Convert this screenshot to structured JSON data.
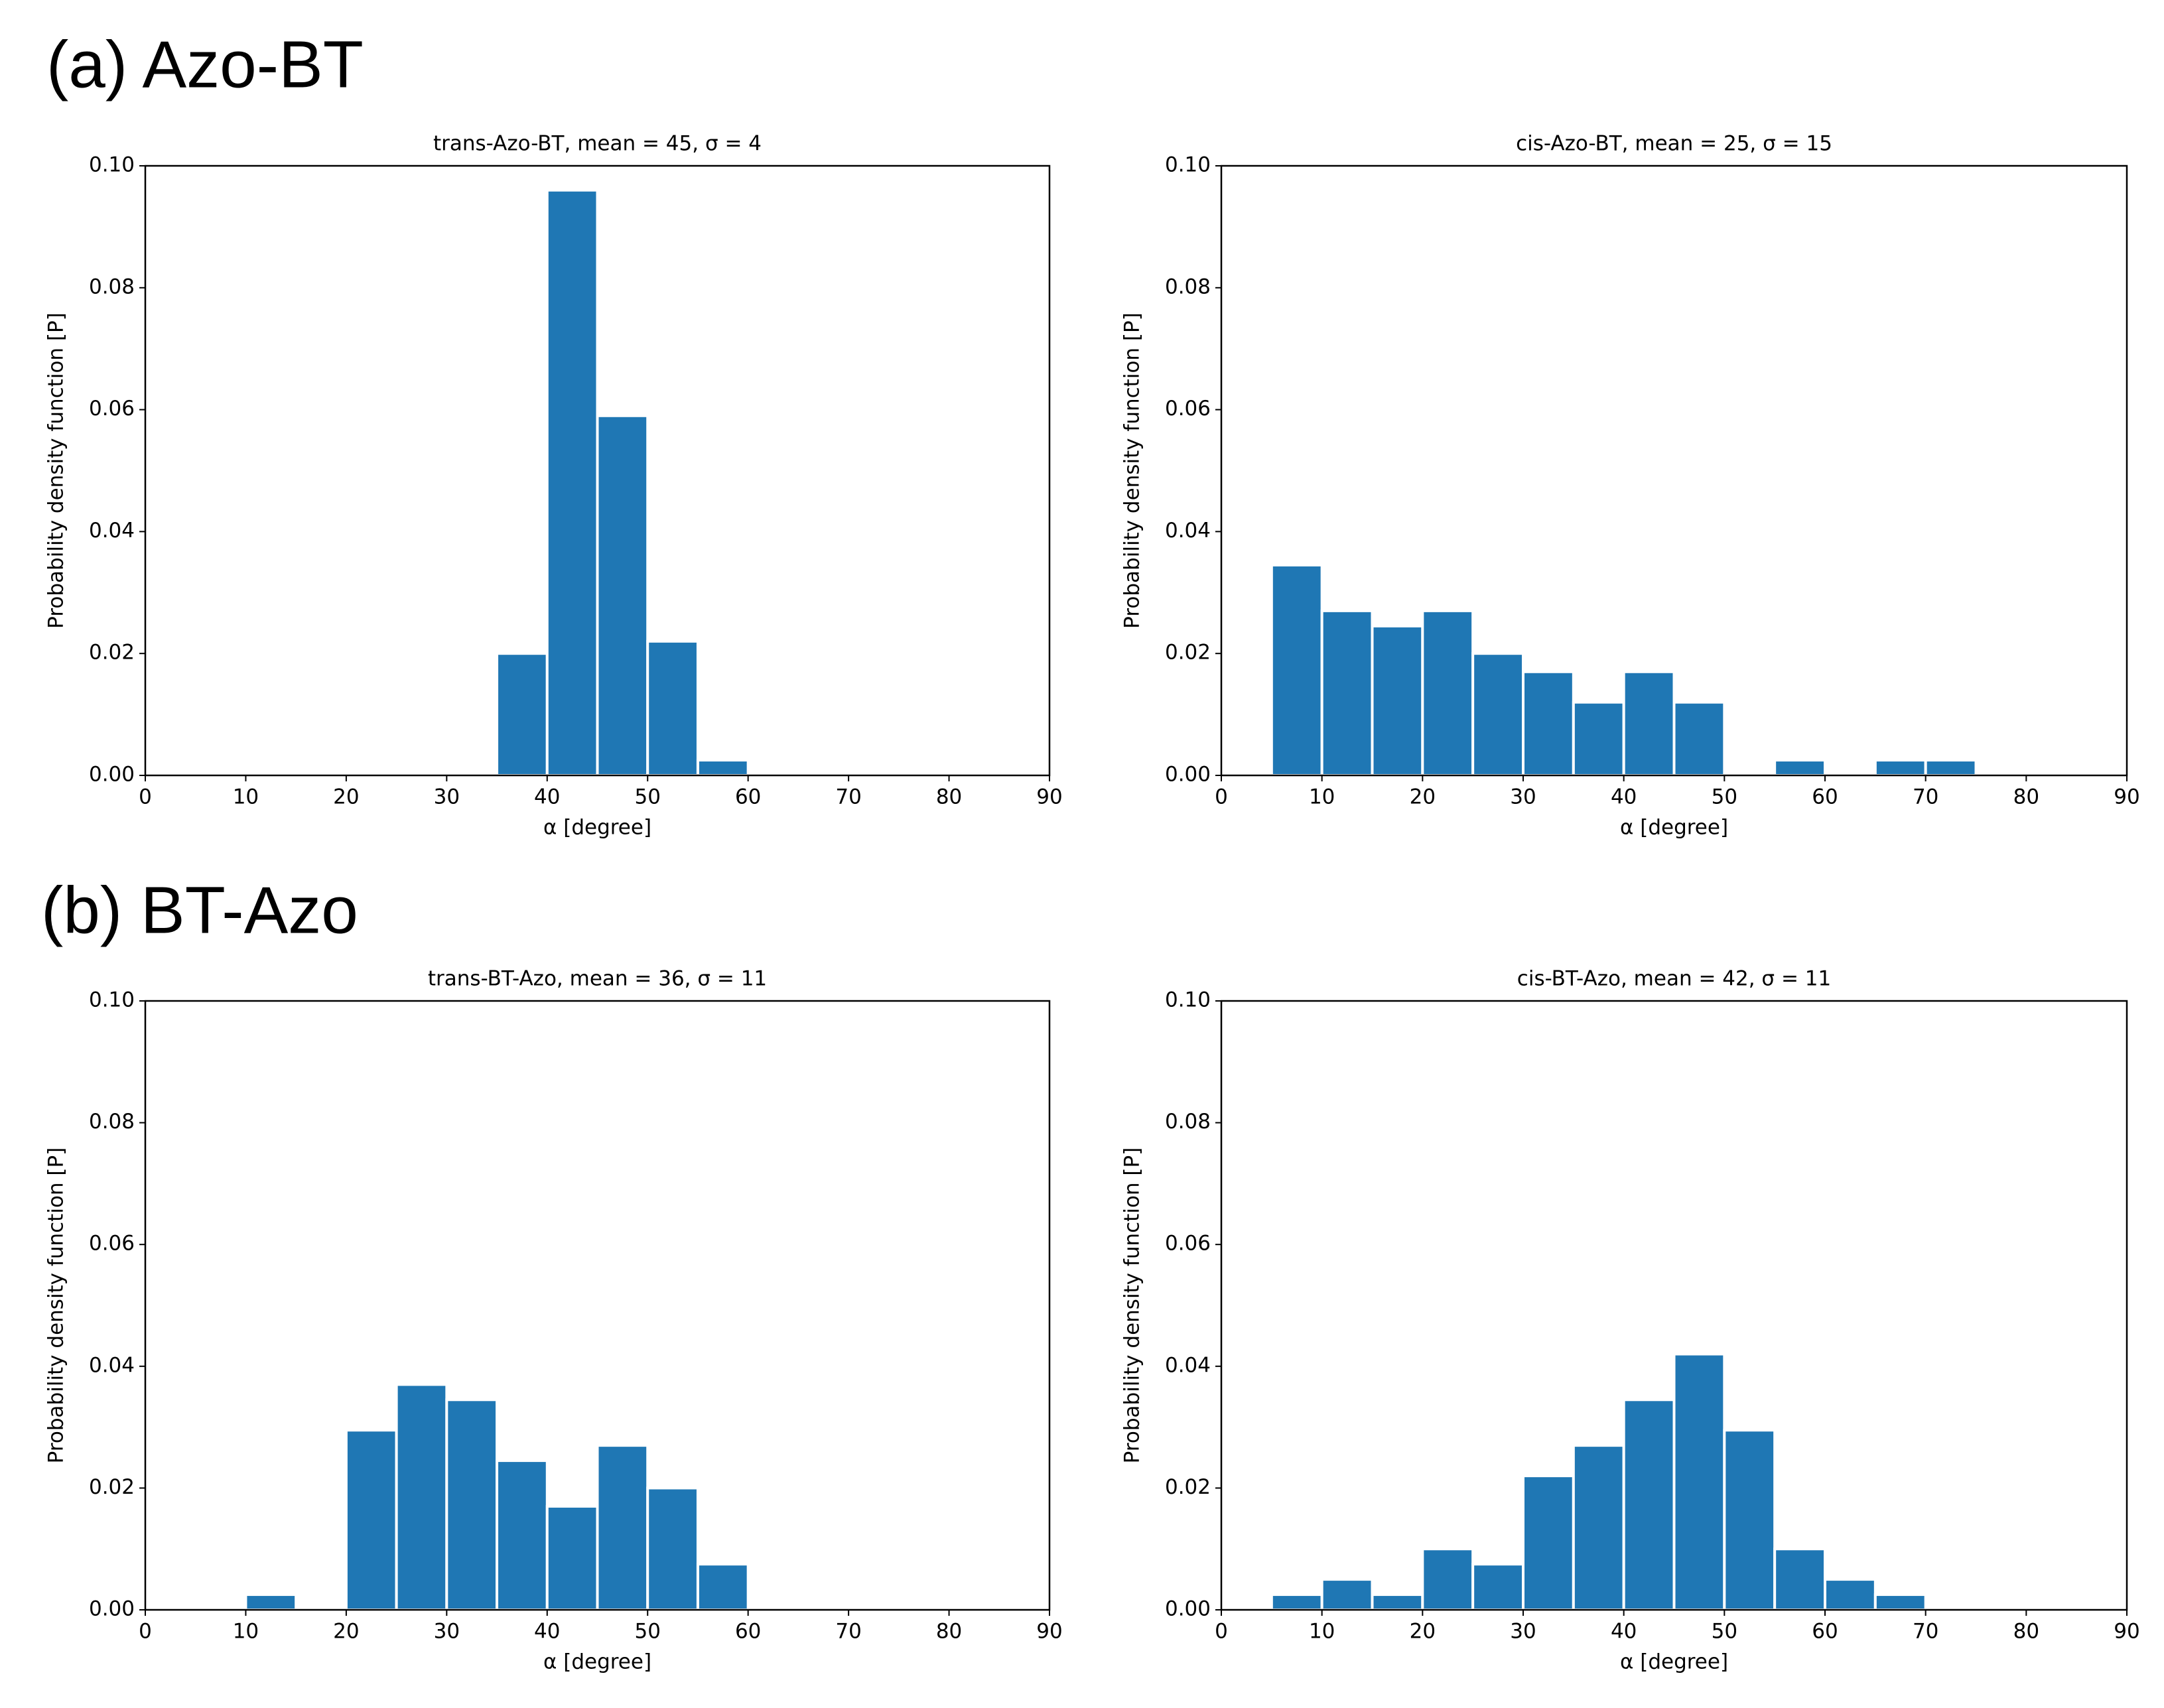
{
  "panel_labels": [
    "(a) Azo-BT",
    "(b) BT-Azo"
  ],
  "chart_data": [
    {
      "type": "histogram",
      "title": "trans-Azo-BT, mean = 45, σ = 4",
      "xlabel": "α [degree]",
      "ylabel": "Probability density function [P]",
      "color": "#1f77b4",
      "bins": [
        0,
        5,
        10,
        15,
        20,
        25,
        30,
        35,
        40,
        45,
        50,
        55,
        60,
        65,
        70,
        75,
        80,
        85,
        90
      ],
      "counts": [
        0,
        0,
        0,
        0,
        0,
        0,
        0,
        0.02,
        0.096,
        0.059,
        0.022,
        0.0025,
        0,
        0,
        0,
        0,
        0,
        0
      ],
      "xlim": [
        0,
        90
      ],
      "xticks": [
        0,
        10,
        20,
        30,
        40,
        50,
        60,
        70,
        80,
        90
      ],
      "ylim": [
        0,
        0.1
      ],
      "yticks": [
        {
          "value": 0,
          "label": "0.00"
        },
        {
          "value": 0.02,
          "label": "0.02"
        },
        {
          "value": 0.04,
          "label": "0.04"
        },
        {
          "value": 0.06,
          "label": "0.06"
        },
        {
          "value": 0.08,
          "label": "0.08"
        },
        {
          "value": 0.1,
          "label": "0.10"
        }
      ]
    },
    {
      "type": "histogram",
      "title": "cis-Azo-BT, mean = 25, σ = 15",
      "xlabel": "α [degree]",
      "ylabel": "Probability density function [P]",
      "color": "#1f77b4",
      "bins": [
        0,
        5,
        10,
        15,
        20,
        25,
        30,
        35,
        40,
        45,
        50,
        55,
        60,
        65,
        70,
        75,
        80,
        85,
        90
      ],
      "counts": [
        0,
        0.0345,
        0.027,
        0.0245,
        0.027,
        0.02,
        0.017,
        0.012,
        0.017,
        0.012,
        0,
        0.0025,
        0,
        0.0025,
        0.0025,
        0,
        0,
        0
      ],
      "xlim": [
        0,
        90
      ],
      "xticks": [
        0,
        10,
        20,
        30,
        40,
        50,
        60,
        70,
        80,
        90
      ],
      "ylim": [
        0,
        0.1
      ],
      "yticks": [
        {
          "value": 0,
          "label": "0.00"
        },
        {
          "value": 0.02,
          "label": "0.02"
        },
        {
          "value": 0.04,
          "label": "0.04"
        },
        {
          "value": 0.06,
          "label": "0.06"
        },
        {
          "value": 0.08,
          "label": "0.08"
        },
        {
          "value": 0.1,
          "label": "0.10"
        }
      ]
    },
    {
      "type": "histogram",
      "title": "trans-BT-Azo, mean = 36, σ = 11",
      "xlabel": "α [degree]",
      "ylabel": "Probability density function [P]",
      "color": "#1f77b4",
      "bins": [
        0,
        5,
        10,
        15,
        20,
        25,
        30,
        35,
        40,
        45,
        50,
        55,
        60,
        65,
        70,
        75,
        80,
        85,
        90
      ],
      "counts": [
        0,
        0,
        0.0025,
        0,
        0.0295,
        0.037,
        0.0345,
        0.0245,
        0.017,
        0.027,
        0.02,
        0.0075,
        0,
        0,
        0,
        0,
        0,
        0
      ],
      "xlim": [
        0,
        90
      ],
      "xticks": [
        0,
        10,
        20,
        30,
        40,
        50,
        60,
        70,
        80,
        90
      ],
      "ylim": [
        0,
        0.1
      ],
      "yticks": [
        {
          "value": 0,
          "label": "0.00"
        },
        {
          "value": 0.02,
          "label": "0.02"
        },
        {
          "value": 0.04,
          "label": "0.04"
        },
        {
          "value": 0.06,
          "label": "0.06"
        },
        {
          "value": 0.08,
          "label": "0.08"
        },
        {
          "value": 0.1,
          "label": "0.10"
        }
      ]
    },
    {
      "type": "histogram",
      "title": "cis-BT-Azo, mean = 42, σ = 11",
      "xlabel": "α [degree]",
      "ylabel": "Probability density function [P]",
      "color": "#1f77b4",
      "bins": [
        0,
        5,
        10,
        15,
        20,
        25,
        30,
        35,
        40,
        45,
        50,
        55,
        60,
        65,
        70,
        75,
        80,
        85,
        90
      ],
      "counts": [
        0,
        0.0025,
        0.005,
        0.0025,
        0.01,
        0.0075,
        0.022,
        0.027,
        0.0345,
        0.042,
        0.0295,
        0.01,
        0.005,
        0.0025,
        0,
        0,
        0,
        0
      ],
      "xlim": [
        0,
        90
      ],
      "xticks": [
        0,
        10,
        20,
        30,
        40,
        50,
        60,
        70,
        80,
        90
      ],
      "ylim": [
        0,
        0.1
      ],
      "yticks": [
        {
          "value": 0,
          "label": "0.00"
        },
        {
          "value": 0.02,
          "label": "0.02"
        },
        {
          "value": 0.04,
          "label": "0.04"
        },
        {
          "value": 0.06,
          "label": "0.06"
        },
        {
          "value": 0.08,
          "label": "0.08"
        },
        {
          "value": 0.1,
          "label": "0.10"
        }
      ]
    }
  ]
}
